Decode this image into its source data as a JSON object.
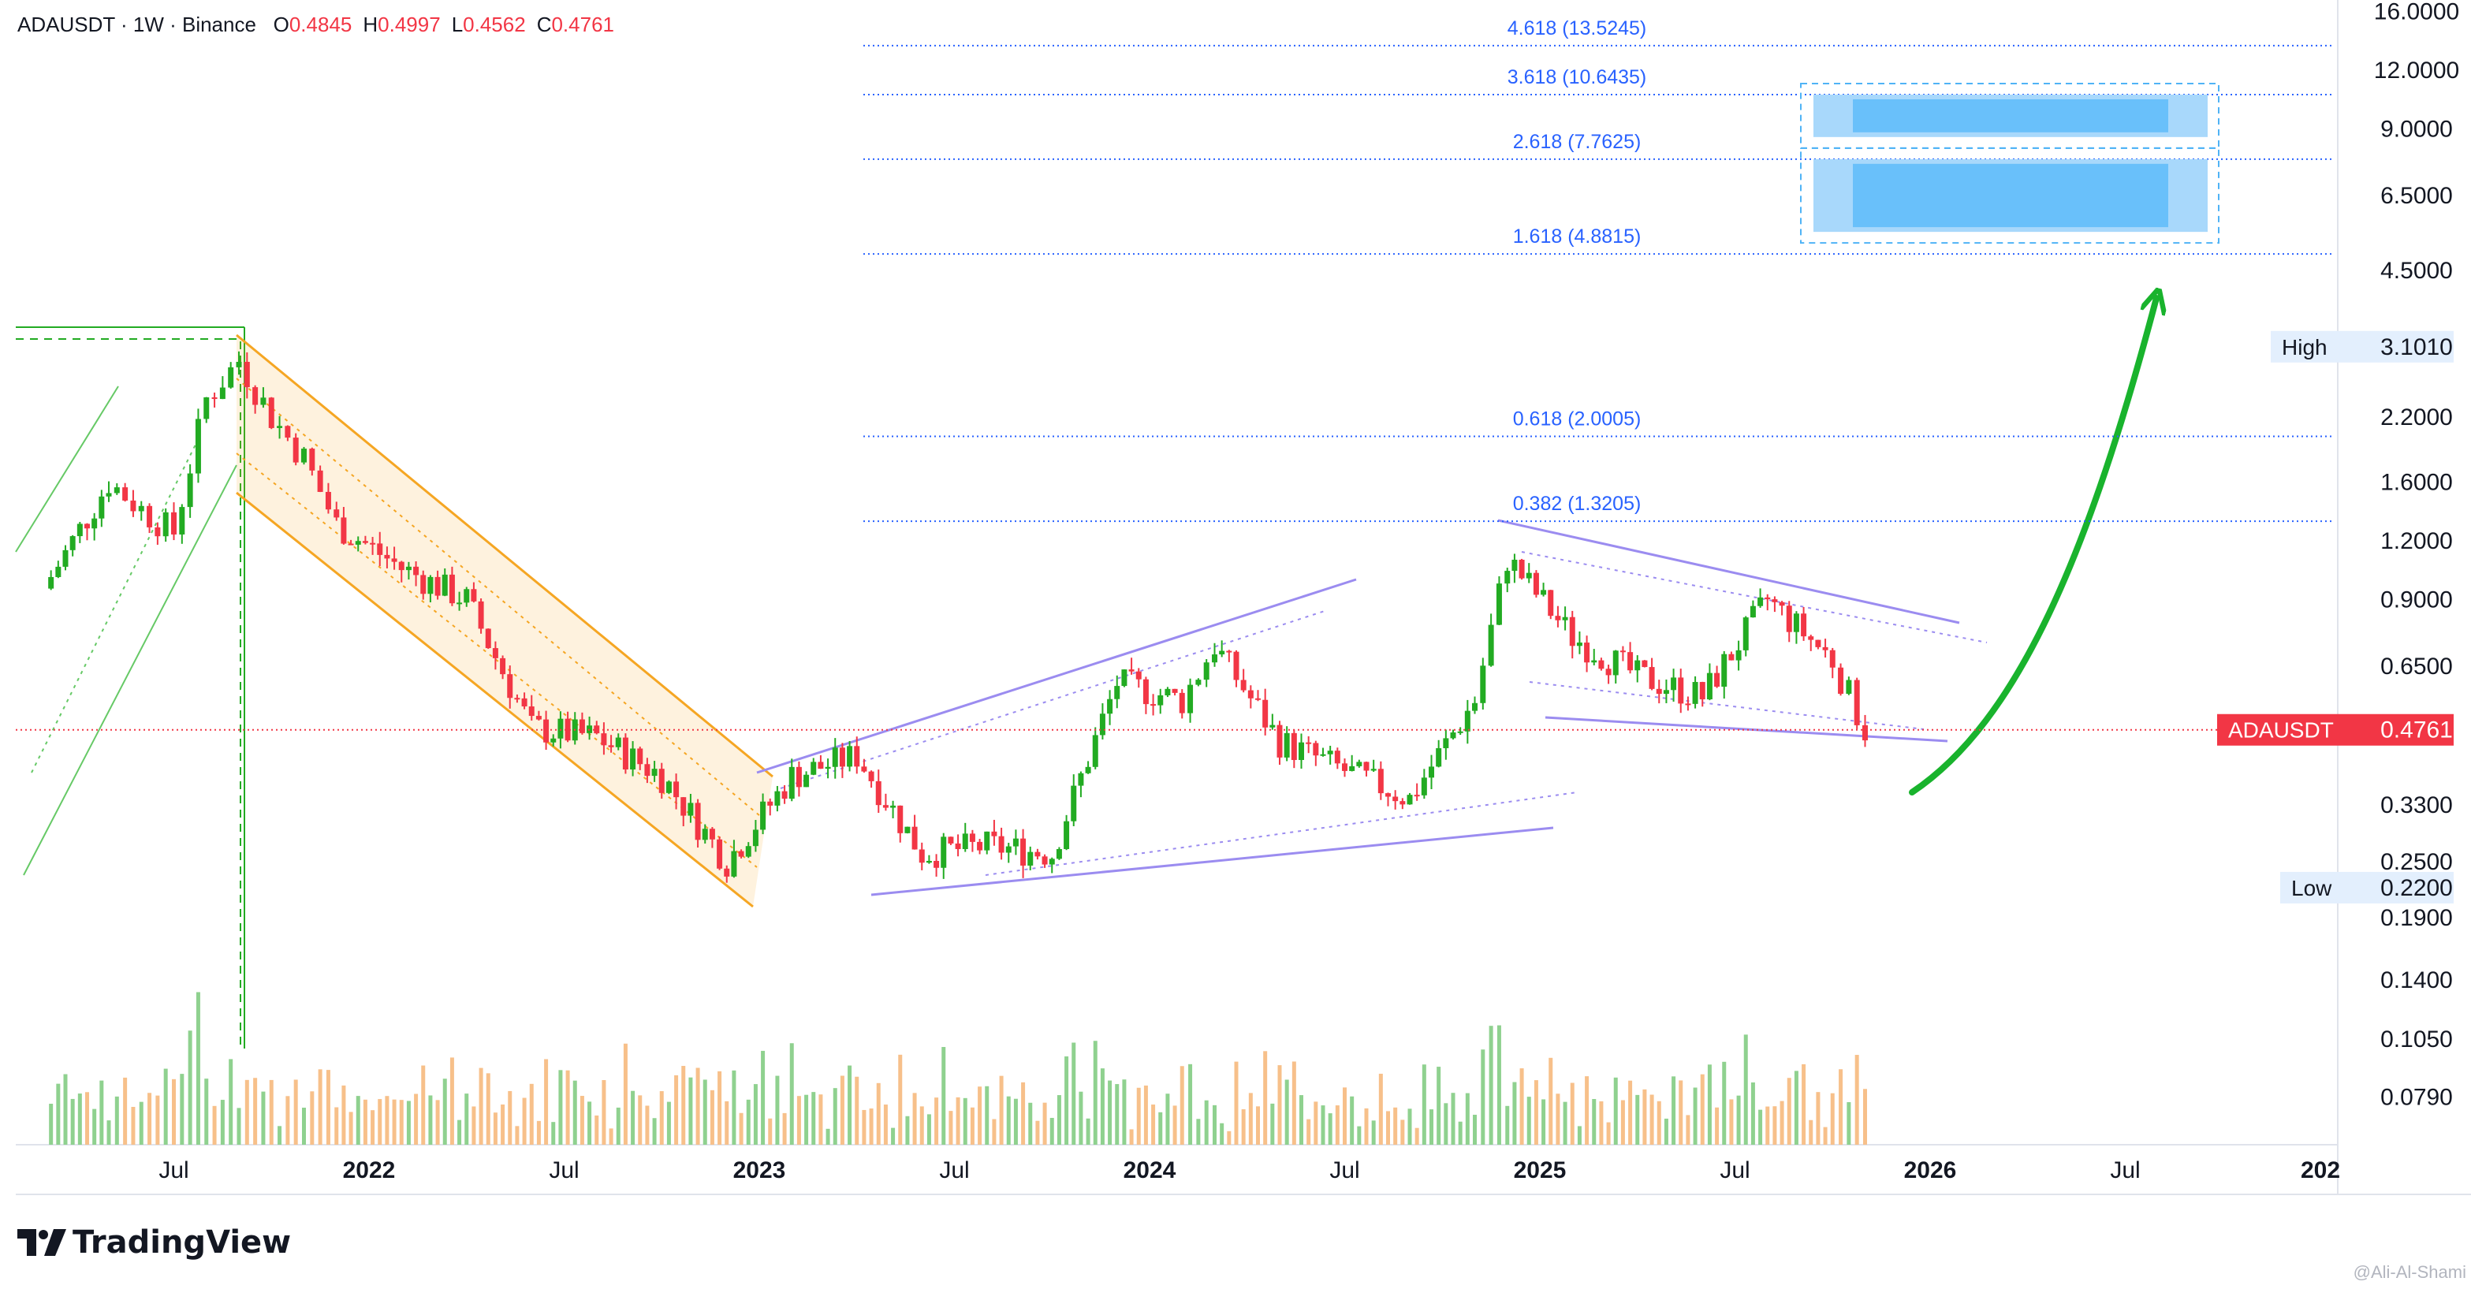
{
  "header": {
    "symbol_line": "ADAUSDT · 1W · Binance",
    "ohlc": [
      {
        "label": "O",
        "value": "0.4845"
      },
      {
        "label": "H",
        "value": "0.4997"
      },
      {
        "label": "L",
        "value": "0.4562"
      },
      {
        "label": "C",
        "value": "0.4761"
      }
    ]
  },
  "brand": {
    "name": "TradingView"
  },
  "watermark": "@Ali-Al-Shami",
  "colors": {
    "up": "#26a69a",
    "down": "#f23645",
    "green_candle": "#22ab22",
    "fib": "#2962ff",
    "target": "#4fb3f6",
    "arrow": "#19b32d",
    "channel": "#f5a623"
  },
  "chart_data": {
    "type": "candlestick",
    "symbol": "ADAUSDT",
    "interval": "1W",
    "exchange": "Binance",
    "y_scale": "log",
    "y_ticks": [
      "16.0000",
      "12.0000",
      "9.0000",
      "6.5000",
      "4.5000",
      "3.1010",
      "2.2000",
      "1.6000",
      "1.2000",
      "0.9000",
      "0.6500",
      "0.4761",
      "0.3300",
      "0.2500",
      "0.2200",
      "0.1900",
      "0.1400",
      "0.1050",
      "0.0790"
    ],
    "y_tick_values": [
      16,
      12,
      9,
      6.5,
      4.5,
      3.101,
      2.2,
      1.6,
      1.2,
      0.9,
      0.65,
      0.4761,
      0.33,
      0.25,
      0.22,
      0.19,
      0.14,
      0.105,
      0.079
    ],
    "x_ticks": [
      "Jul",
      "2022",
      "Jul",
      "2023",
      "Jul",
      "2024",
      "Jul",
      "2025",
      "Jul",
      "2026",
      "Jul",
      "202"
    ],
    "x_tick_dates": [
      "2021-07",
      "2022-01",
      "2022-07",
      "2023-01",
      "2023-07",
      "2024-01",
      "2024-07",
      "2025-01",
      "2025-07",
      "2026-01",
      "2026-07",
      "2027-01"
    ],
    "price_labels": {
      "high": {
        "label": "High",
        "value": "3.1010"
      },
      "low": {
        "label": "Low",
        "value": "0.2200"
      },
      "last": {
        "label": "ADAUSDT",
        "value": "0.4761"
      }
    },
    "fib_levels": [
      {
        "label": "4.618 (13.5245)",
        "value": 13.5245
      },
      {
        "label": "3.618 (10.6435)",
        "value": 10.6435
      },
      {
        "label": "2.618 (7.7625)",
        "value": 7.7625
      },
      {
        "label": "1.618 (4.8815)",
        "value": 4.8815
      },
      {
        "label": "0.618 (2.0005)",
        "value": 2.0005
      },
      {
        "label": "0.382 (1.3205)",
        "value": 1.3205
      }
    ],
    "target_zones": [
      {
        "low": 7.7625,
        "high": 10.6435
      },
      {
        "low": 4.8815,
        "high": 7.7625
      }
    ],
    "weekly_closes": [
      {
        "date": "2021-03",
        "close": 0.95
      },
      {
        "date": "2021-05",
        "close": 1.6
      },
      {
        "date": "2021-06",
        "close": 1.4
      },
      {
        "date": "2021-07",
        "close": 1.25
      },
      {
        "date": "2021-08",
        "close": 2.4
      },
      {
        "date": "2021-09",
        "close": 2.9
      },
      {
        "date": "2021-10",
        "close": 2.2
      },
      {
        "date": "2021-11",
        "close": 1.8
      },
      {
        "date": "2021-12",
        "close": 1.3
      },
      {
        "date": "2022-02",
        "close": 1.05
      },
      {
        "date": "2022-04",
        "close": 0.9
      },
      {
        "date": "2022-06",
        "close": 0.48
      },
      {
        "date": "2022-08",
        "close": 0.46
      },
      {
        "date": "2022-10",
        "close": 0.38
      },
      {
        "date": "2022-12",
        "close": 0.25
      },
      {
        "date": "2023-02",
        "close": 0.38
      },
      {
        "date": "2023-04",
        "close": 0.42
      },
      {
        "date": "2023-06",
        "close": 0.26
      },
      {
        "date": "2023-08",
        "close": 0.27
      },
      {
        "date": "2023-10",
        "close": 0.26
      },
      {
        "date": "2023-12",
        "close": 0.6
      },
      {
        "date": "2024-02",
        "close": 0.55
      },
      {
        "date": "2024-03",
        "close": 0.72
      },
      {
        "date": "2024-05",
        "close": 0.45
      },
      {
        "date": "2024-07",
        "close": 0.39
      },
      {
        "date": "2024-09",
        "close": 0.34
      },
      {
        "date": "2024-11",
        "close": 0.55
      },
      {
        "date": "2024-12",
        "close": 1.1
      },
      {
        "date": "2025-02",
        "close": 0.75
      },
      {
        "date": "2025-04",
        "close": 0.62
      },
      {
        "date": "2025-06",
        "close": 0.56
      },
      {
        "date": "2025-08",
        "close": 0.9
      },
      {
        "date": "2025-10",
        "close": 0.67
      },
      {
        "date": "2025-11",
        "close": 0.4761
      }
    ]
  }
}
